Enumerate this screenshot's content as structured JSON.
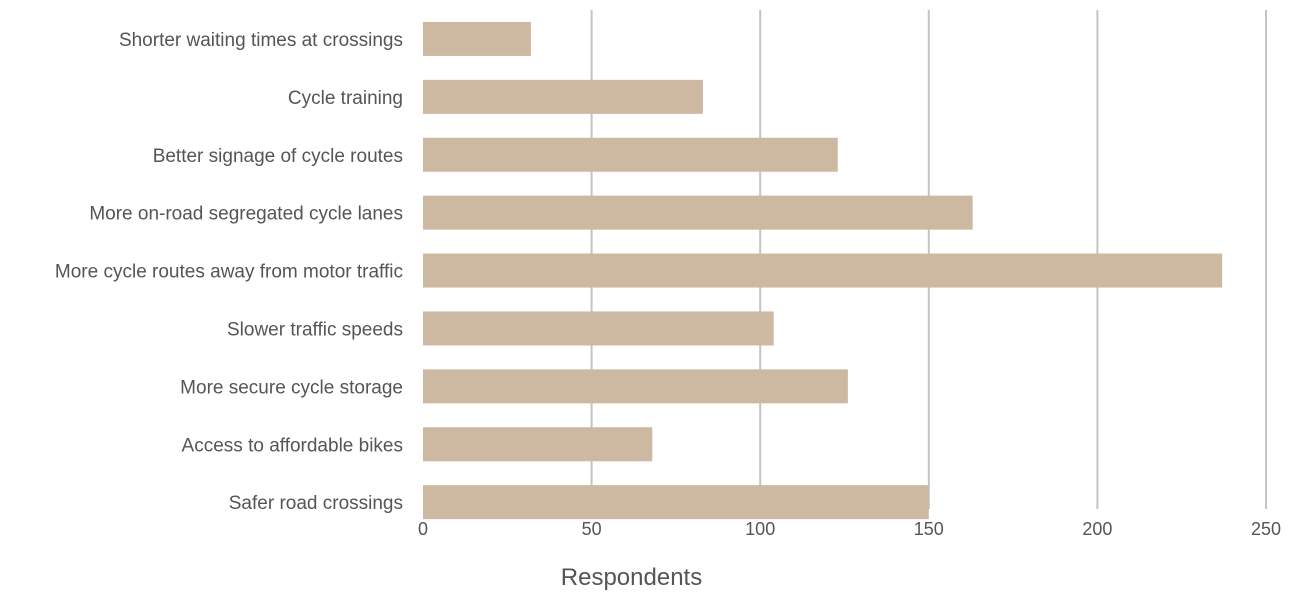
{
  "chart_data": {
    "type": "bar",
    "orientation": "horizontal",
    "categories": [
      "Shorter waiting times at crossings",
      "Cycle training",
      "Better signage of cycle routes",
      "More on-road segregated cycle lanes",
      "More cycle routes away from motor traffic",
      "Slower traffic speeds",
      "More secure cycle storage",
      "Access to affordable bikes",
      "Safer road crossings"
    ],
    "values": [
      32,
      83,
      123,
      163,
      237,
      104,
      126,
      68,
      150
    ],
    "xlabel": "Respondents",
    "ylabel": "",
    "xlim": [
      0,
      250
    ],
    "xticks": [
      "0",
      "50",
      "100",
      "150",
      "200",
      "250"
    ],
    "grid": true,
    "legend": "none",
    "colors": {
      "bar": "#cdb8a1",
      "grid": "#c4c4c4",
      "label": "#555555",
      "axis_title": "#555555"
    }
  }
}
